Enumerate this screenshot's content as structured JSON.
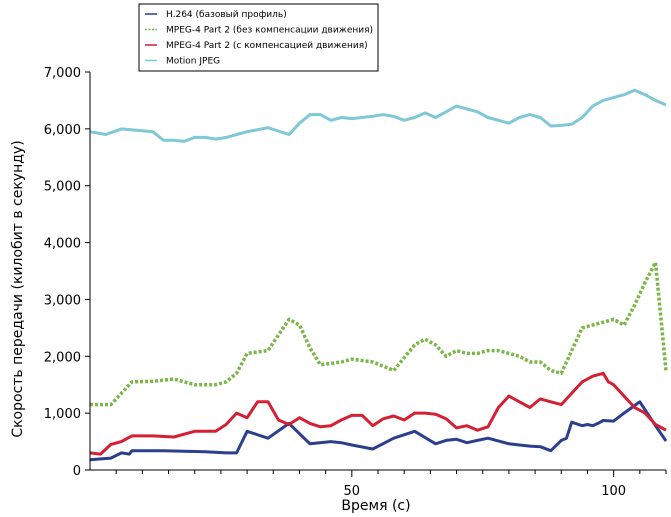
{
  "chart_data": {
    "type": "line",
    "title": "",
    "xlabel": "Время (с)",
    "ylabel": "Скорость передачи (килобит в секунду)",
    "xlim": [
      0,
      110
    ],
    "ylim": [
      0,
      7000
    ],
    "xticks": [
      50,
      100
    ],
    "yticks": [
      0,
      1000,
      2000,
      3000,
      4000,
      5000,
      6000,
      7000
    ],
    "ytick_labels": [
      "0",
      "1,000",
      "2,000",
      "3,000",
      "4,000",
      "5,000",
      "6,000",
      "7,000"
    ],
    "grid": false,
    "legend_position": "top-left",
    "series": [
      {
        "name": "H.264 (базовый профиль)",
        "color": "#2b3f8c",
        "dash": "solid",
        "x": [
          0,
          4,
          6,
          7.5,
          8,
          8.1,
          10,
          14,
          18,
          22,
          26,
          28,
          30,
          34,
          38,
          42,
          46,
          48,
          50,
          54,
          58,
          62,
          66,
          68,
          70,
          72,
          74,
          76,
          80,
          82,
          84,
          86,
          88,
          90,
          91,
          92,
          94,
          95,
          96,
          97,
          98,
          100,
          102,
          105,
          108,
          110
        ],
        "y": [
          180,
          210,
          300,
          280,
          340,
          340,
          340,
          340,
          330,
          320,
          300,
          300,
          680,
          560,
          820,
          460,
          500,
          480,
          440,
          370,
          560,
          680,
          460,
          520,
          540,
          480,
          520,
          560,
          460,
          440,
          420,
          410,
          340,
          520,
          560,
          840,
          780,
          800,
          780,
          820,
          870,
          860,
          1000,
          1200,
          780,
          510
        ]
      },
      {
        "name": "MPEG-4 Part 2 (без компенсации движения)",
        "color": "#7ab648",
        "dash": "dotted",
        "x": [
          0,
          4,
          8,
          12,
          16,
          20,
          24,
          26,
          28,
          30,
          34,
          38,
          40,
          42,
          44,
          48,
          50,
          54,
          58,
          62,
          64,
          66,
          68,
          70,
          72,
          74,
          76,
          78,
          80,
          82,
          84,
          86,
          88,
          90,
          92,
          94,
          96,
          98,
          100,
          102,
          104,
          106,
          108,
          110
        ],
        "y": [
          1150,
          1150,
          1550,
          1560,
          1600,
          1500,
          1500,
          1550,
          1700,
          2050,
          2100,
          2650,
          2550,
          2150,
          1850,
          1900,
          1950,
          1900,
          1750,
          2200,
          2300,
          2200,
          2000,
          2100,
          2050,
          2050,
          2100,
          2100,
          2050,
          2000,
          1900,
          1900,
          1750,
          1700,
          2100,
          2500,
          2550,
          2600,
          2650,
          2550,
          2900,
          3300,
          3650,
          1750
        ]
      },
      {
        "name": "MPEG-4 Part 2 (с компенсацией движения)",
        "color": "#d42032",
        "dash": "solid",
        "x": [
          0,
          2,
          4,
          6,
          8,
          10,
          12,
          16,
          20,
          24,
          26,
          28,
          30,
          32,
          34,
          36,
          38,
          40,
          42,
          44,
          46,
          48,
          50,
          52,
          54,
          56,
          58,
          60,
          62,
          64,
          66,
          68,
          70,
          72,
          74,
          76,
          78,
          80,
          82,
          84,
          86,
          88,
          90,
          92,
          94,
          96,
          98,
          99,
          100,
          102,
          104,
          106,
          108,
          110
        ],
        "y": [
          300,
          280,
          450,
          500,
          600,
          600,
          600,
          580,
          680,
          680,
          800,
          1000,
          920,
          1200,
          1200,
          880,
          800,
          920,
          820,
          760,
          780,
          880,
          960,
          960,
          780,
          900,
          950,
          880,
          1000,
          1000,
          980,
          900,
          740,
          780,
          700,
          760,
          1100,
          1300,
          1200,
          1100,
          1250,
          1200,
          1150,
          1350,
          1550,
          1650,
          1700,
          1550,
          1500,
          1300,
          1100,
          1000,
          800,
          700
        ]
      },
      {
        "name": "Motion JPEG",
        "color": "#7ec8d8",
        "dash": "solid",
        "x": [
          0,
          3,
          6,
          12,
          14,
          16,
          18,
          20,
          22,
          24,
          26,
          30,
          34,
          38,
          40,
          42,
          44,
          46,
          48,
          50,
          52,
          54,
          56,
          58,
          60,
          62,
          64,
          66,
          68,
          70,
          72,
          74,
          76,
          78,
          80,
          82,
          84,
          86,
          88,
          90,
          92,
          94,
          96,
          98,
          100,
          102,
          104,
          106,
          108,
          110
        ],
        "y": [
          5950,
          5900,
          6000,
          5950,
          5800,
          5800,
          5780,
          5850,
          5850,
          5820,
          5850,
          5950,
          6020,
          5900,
          6100,
          6250,
          6250,
          6150,
          6200,
          6180,
          6200,
          6220,
          6250,
          6220,
          6150,
          6200,
          6280,
          6200,
          6300,
          6400,
          6350,
          6300,
          6200,
          6150,
          6100,
          6200,
          6250,
          6200,
          6050,
          6060,
          6080,
          6200,
          6400,
          6500,
          6550,
          6600,
          6680,
          6600,
          6500,
          6420
        ]
      }
    ]
  }
}
